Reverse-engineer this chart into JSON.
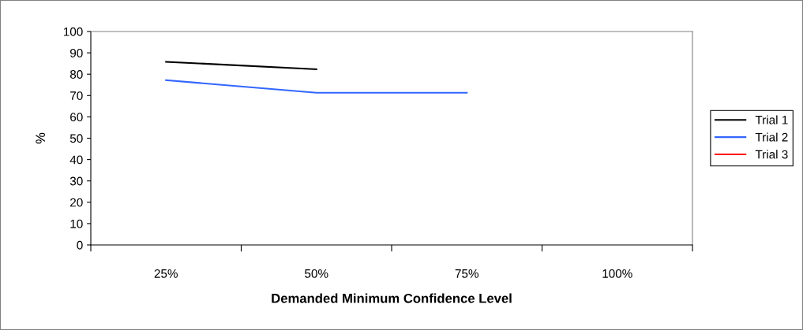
{
  "chart_data": {
    "type": "line",
    "xlabel": "Demanded Minimum Confidence Level",
    "ylabel": "%",
    "categories": [
      "25%",
      "50%",
      "75%",
      "100%"
    ],
    "series": [
      {
        "name": "Trial 1",
        "color": "#000000",
        "values": [
          85.8,
          82.3,
          null,
          null
        ]
      },
      {
        "name": "Trial 2",
        "color": "#3366ff",
        "values": [
          77.2,
          71.3,
          71.3,
          null
        ]
      },
      {
        "name": "Trial 3",
        "color": "#ff0000",
        "values": [
          null,
          null,
          null,
          null
        ]
      }
    ],
    "ylim": [
      0,
      100
    ],
    "yticks": [
      0,
      10,
      20,
      30,
      40,
      50,
      60,
      70,
      80,
      90,
      100
    ],
    "grid": false,
    "legend": "right",
    "marker": "none",
    "line_style": "solid"
  }
}
